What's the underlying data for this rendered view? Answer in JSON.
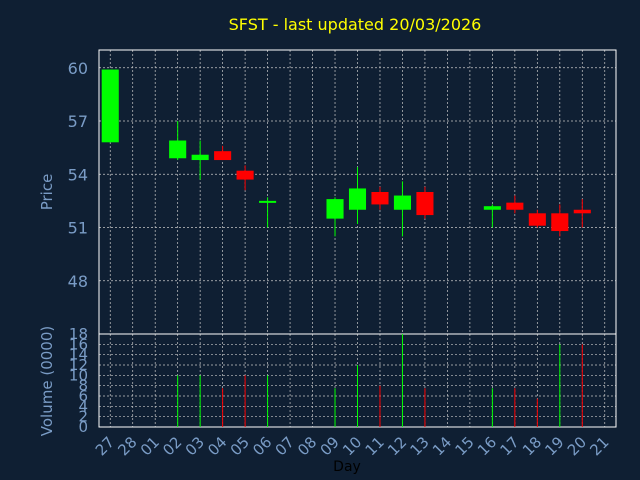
{
  "chart_data": [
    {
      "type": "candlestick",
      "title": "SFST - last updated 20/03/2026",
      "xlabel": "",
      "ylabel": "Price",
      "ylim": [
        45,
        61
      ],
      "yticks": [
        48,
        51,
        54,
        57,
        60
      ],
      "grid": true,
      "categories": [
        "27",
        "28",
        "01",
        "02",
        "03",
        "04",
        "05",
        "06",
        "07",
        "08",
        "09",
        "10",
        "11",
        "12",
        "13",
        "14",
        "15",
        "16",
        "17",
        "18",
        "19",
        "20",
        "21"
      ],
      "candles": [
        {
          "day": "27",
          "open": 55.8,
          "high": 59.9,
          "low": 55.8,
          "close": 59.9
        },
        {
          "day": "02",
          "open": 54.9,
          "high": 57.0,
          "low": 54.8,
          "close": 55.9
        },
        {
          "day": "03",
          "open": 54.8,
          "high": 55.9,
          "low": 53.7,
          "close": 55.1
        },
        {
          "day": "04",
          "open": 55.3,
          "high": 55.6,
          "low": 54.8,
          "close": 54.8
        },
        {
          "day": "05",
          "open": 54.2,
          "high": 54.5,
          "low": 53.1,
          "close": 53.7
        },
        {
          "day": "06",
          "open": 52.4,
          "high": 52.7,
          "low": 51.0,
          "close": 52.5
        },
        {
          "day": "09",
          "open": 51.5,
          "high": 52.7,
          "low": 50.5,
          "close": 52.6
        },
        {
          "day": "10",
          "open": 52.0,
          "high": 54.4,
          "low": 51.2,
          "close": 53.2
        },
        {
          "day": "11",
          "open": 53.0,
          "high": 53.3,
          "low": 52.0,
          "close": 52.3
        },
        {
          "day": "12",
          "open": 52.0,
          "high": 53.6,
          "low": 50.5,
          "close": 52.8
        },
        {
          "day": "13",
          "open": 53.0,
          "high": 53.3,
          "low": 51.5,
          "close": 51.7
        },
        {
          "day": "16",
          "open": 52.0,
          "high": 52.3,
          "low": 51.0,
          "close": 52.2
        },
        {
          "day": "17",
          "open": 52.4,
          "high": 52.8,
          "low": 51.8,
          "close": 52.0
        },
        {
          "day": "18",
          "open": 51.8,
          "high": 52.0,
          "low": 51.0,
          "close": 51.1
        },
        {
          "day": "19",
          "open": 51.8,
          "high": 52.3,
          "low": 50.5,
          "close": 50.8
        },
        {
          "day": "20",
          "open": 52.0,
          "high": 52.6,
          "low": 51.0,
          "close": 51.8
        }
      ],
      "up_color": "#00ff00",
      "down_color": "#ff0000"
    },
    {
      "type": "bar",
      "xlabel": "Day",
      "ylabel": "Volume (0000)",
      "ylim": [
        0,
        18
      ],
      "yticks": [
        0,
        2,
        4,
        6,
        8,
        10,
        12,
        14,
        16,
        18
      ],
      "grid": true,
      "categories": [
        "27",
        "28",
        "01",
        "02",
        "03",
        "04",
        "05",
        "06",
        "07",
        "08",
        "09",
        "10",
        "11",
        "12",
        "13",
        "14",
        "15",
        "16",
        "17",
        "18",
        "19",
        "20",
        "21"
      ],
      "bars": [
        {
          "day": "02",
          "value": 10,
          "direction": "up"
        },
        {
          "day": "03",
          "value": 10,
          "direction": "up"
        },
        {
          "day": "04",
          "value": 7.5,
          "direction": "down"
        },
        {
          "day": "05",
          "value": 10,
          "direction": "down"
        },
        {
          "day": "06",
          "value": 10,
          "direction": "up"
        },
        {
          "day": "09",
          "value": 7.5,
          "direction": "up"
        },
        {
          "day": "10",
          "value": 12,
          "direction": "up"
        },
        {
          "day": "11",
          "value": 8,
          "direction": "down"
        },
        {
          "day": "12",
          "value": 18,
          "direction": "up"
        },
        {
          "day": "13",
          "value": 7.5,
          "direction": "down"
        },
        {
          "day": "16",
          "value": 7.5,
          "direction": "up"
        },
        {
          "day": "17",
          "value": 7.5,
          "direction": "down"
        },
        {
          "day": "18",
          "value": 5.5,
          "direction": "down"
        },
        {
          "day": "19",
          "value": 16,
          "direction": "up"
        },
        {
          "day": "20",
          "value": 16,
          "direction": "down"
        }
      ]
    }
  ],
  "colors": {
    "background": "#0f1f33",
    "axis": "#ffffff",
    "grid": "#c8c8c8",
    "tick_text": "#7a9cc6",
    "title_text": "#ffff00",
    "up": "#00ff00",
    "down": "#ff0000"
  }
}
